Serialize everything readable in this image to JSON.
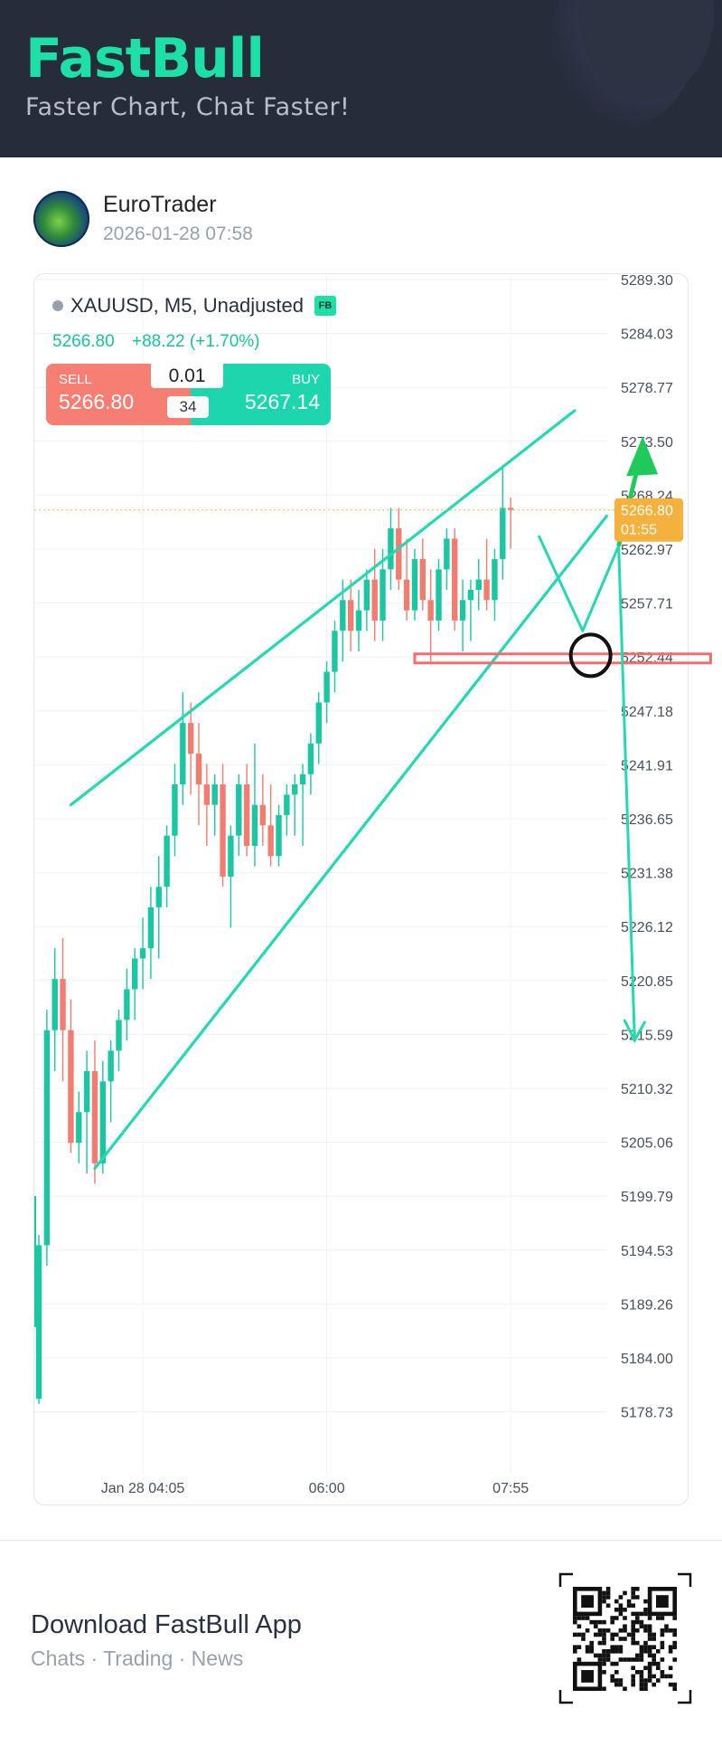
{
  "header": {
    "brand": "FastBull",
    "tagline": "Faster Chart, Chat Faster!"
  },
  "post": {
    "author": "EuroTrader",
    "timestamp": "2026-01-28 07:58"
  },
  "instrument": {
    "label": "XAUUSD, M5, Unadjusted",
    "badge": "FB",
    "last_price": "5266.80",
    "change": "+88.22 (+1.70%)"
  },
  "trade": {
    "sell_label": "SELL",
    "sell_price": "5266.80",
    "buy_label": "BUY",
    "buy_price": "5267.14",
    "lot": "0.01",
    "spread": "34"
  },
  "chart_data": {
    "type": "candlestick",
    "symbol": "XAUUSD",
    "timeframe": "M5",
    "y_ticks": [
      "5289.30",
      "5284.03",
      "5278.77",
      "5273.50",
      "5268.24",
      "5262.97",
      "5257.71",
      "5252.44",
      "5247.18",
      "5241.91",
      "5236.65",
      "5231.38",
      "5226.12",
      "5220.85",
      "5215.59",
      "5210.32",
      "5205.06",
      "5199.79",
      "5194.53",
      "5189.26",
      "5184.00",
      "5178.73"
    ],
    "ylim": [
      5178.73,
      5289.3
    ],
    "x_ticks": [
      {
        "label": "Jan 28 04:05",
        "index": 13
      },
      {
        "label": "06:00",
        "index": 36
      },
      {
        "label": "07:55",
        "index": 59
      }
    ],
    "current_price_label": "5266.80",
    "countdown": "01:55",
    "current_price": 5266.8,
    "colors": {
      "up": "#19c8a0",
      "down": "#f37c71",
      "drawing": "#24d8b0",
      "green_arrow": "#1fc95c",
      "support": "#f26d6d"
    },
    "candles": [
      [
        5180.0,
        5196.0,
        5179.5,
        5195.0
      ],
      [
        5195.0,
        5218.0,
        5193.0,
        5216.0
      ],
      [
        5216.0,
        5224.0,
        5212.0,
        5221.0
      ],
      [
        5221.0,
        5225.0,
        5211.0,
        5216.0
      ],
      [
        5216.0,
        5219.0,
        5204.0,
        5205.0
      ],
      [
        5205.0,
        5210.0,
        5203.0,
        5208.0
      ],
      [
        5208.0,
        5214.0,
        5202.0,
        5212.0
      ],
      [
        5212.0,
        5215.0,
        5201.0,
        5203.0
      ],
      [
        5203.0,
        5213.0,
        5202.0,
        5211.0
      ],
      [
        5211.0,
        5215.0,
        5207.0,
        5214.0
      ],
      [
        5214.0,
        5218.0,
        5212.0,
        5217.0
      ],
      [
        5217.0,
        5222.0,
        5215.0,
        5220.0
      ],
      [
        5220.0,
        5224.0,
        5217.0,
        5223.0
      ],
      [
        5223.0,
        5227.0,
        5220.0,
        5224.0
      ],
      [
        5224.0,
        5230.0,
        5221.0,
        5228.0
      ],
      [
        5228.0,
        5233.0,
        5223.0,
        5230.0
      ],
      [
        5230.0,
        5236.0,
        5228.0,
        5235.0
      ],
      [
        5235.0,
        5242.0,
        5233.0,
        5240.0
      ],
      [
        5240.0,
        5249.0,
        5238.0,
        5246.0
      ],
      [
        5246.0,
        5248.0,
        5239.0,
        5243.0
      ],
      [
        5243.0,
        5246.0,
        5236.0,
        5240.0
      ],
      [
        5240.0,
        5242.0,
        5234.0,
        5238.0
      ],
      [
        5238.0,
        5241.0,
        5235.0,
        5240.0
      ],
      [
        5240.0,
        5242.0,
        5230.0,
        5231.0
      ],
      [
        5231.0,
        5236.0,
        5226.0,
        5235.0
      ],
      [
        5235.0,
        5241.0,
        5233.0,
        5240.0
      ],
      [
        5240.0,
        5242.0,
        5233.0,
        5234.0
      ],
      [
        5234.0,
        5244.0,
        5232.0,
        5238.0
      ],
      [
        5238.0,
        5241.0,
        5234.0,
        5236.0
      ],
      [
        5236.0,
        5240.0,
        5232.0,
        5233.0
      ],
      [
        5233.0,
        5238.0,
        5232.0,
        5237.0
      ],
      [
        5237.0,
        5240.0,
        5235.0,
        5239.0
      ],
      [
        5239.0,
        5241.0,
        5235.0,
        5240.0
      ],
      [
        5240.0,
        5242.0,
        5234.0,
        5241.0
      ],
      [
        5241.0,
        5245.0,
        5239.0,
        5244.0
      ],
      [
        5244.0,
        5249.0,
        5242.0,
        5248.0
      ],
      [
        5248.0,
        5252.0,
        5246.0,
        5251.0
      ],
      [
        5251.0,
        5256.0,
        5249.0,
        5255.0
      ],
      [
        5255.0,
        5260.0,
        5252.0,
        5258.0
      ],
      [
        5258.0,
        5260.0,
        5253.0,
        5255.0
      ],
      [
        5255.0,
        5259.0,
        5253.0,
        5257.0
      ],
      [
        5257.0,
        5261.0,
        5255.0,
        5260.0
      ],
      [
        5260.0,
        5263.0,
        5254.0,
        5256.0
      ],
      [
        5256.0,
        5263.0,
        5254.0,
        5261.0
      ],
      [
        5261.0,
        5267.0,
        5259.0,
        5265.0
      ],
      [
        5265.0,
        5267.0,
        5259.0,
        5260.0
      ],
      [
        5260.0,
        5264.0,
        5256.0,
        5257.0
      ],
      [
        5257.0,
        5263.0,
        5256.0,
        5262.0
      ],
      [
        5262.0,
        5264.0,
        5257.0,
        5258.0
      ],
      [
        5258.0,
        5261.0,
        5252.0,
        5256.0
      ],
      [
        5256.0,
        5262.0,
        5255.0,
        5261.0
      ],
      [
        5261.0,
        5265.0,
        5259.0,
        5264.0
      ],
      [
        5264.0,
        5265.0,
        5255.0,
        5256.0
      ],
      [
        5256.0,
        5260.0,
        5253.0,
        5258.0
      ],
      [
        5258.0,
        5260.0,
        5254.0,
        5259.0
      ],
      [
        5259.0,
        5262.0,
        5257.0,
        5260.0
      ],
      [
        5260.0,
        5264.0,
        5257.0,
        5258.0
      ],
      [
        5258.0,
        5263.0,
        5256.0,
        5262.0
      ],
      [
        5262.0,
        5271.0,
        5260.0,
        5267.0
      ],
      [
        5267.0,
        5268.0,
        5263.0,
        5266.8
      ]
    ],
    "annotations": {
      "upper_trendline": [
        {
          "index": 4,
          "price": 5238.0
        },
        {
          "index": 67,
          "price": 5276.5
        }
      ],
      "lower_trendline": [
        {
          "index": 7,
          "price": 5202.5
        },
        {
          "index": 71,
          "price": 5266.2
        }
      ],
      "support_zone_price": 5252.3,
      "support_zone_index_range": [
        47,
        84
      ],
      "circle_marker": {
        "index": 69,
        "price": 5252.6
      },
      "green_target_price": 5274.0,
      "down_target_price": 5215.0
    }
  },
  "footer": {
    "download_title": "Download FastBull App",
    "download_sub": "Chats · Trading · News"
  }
}
